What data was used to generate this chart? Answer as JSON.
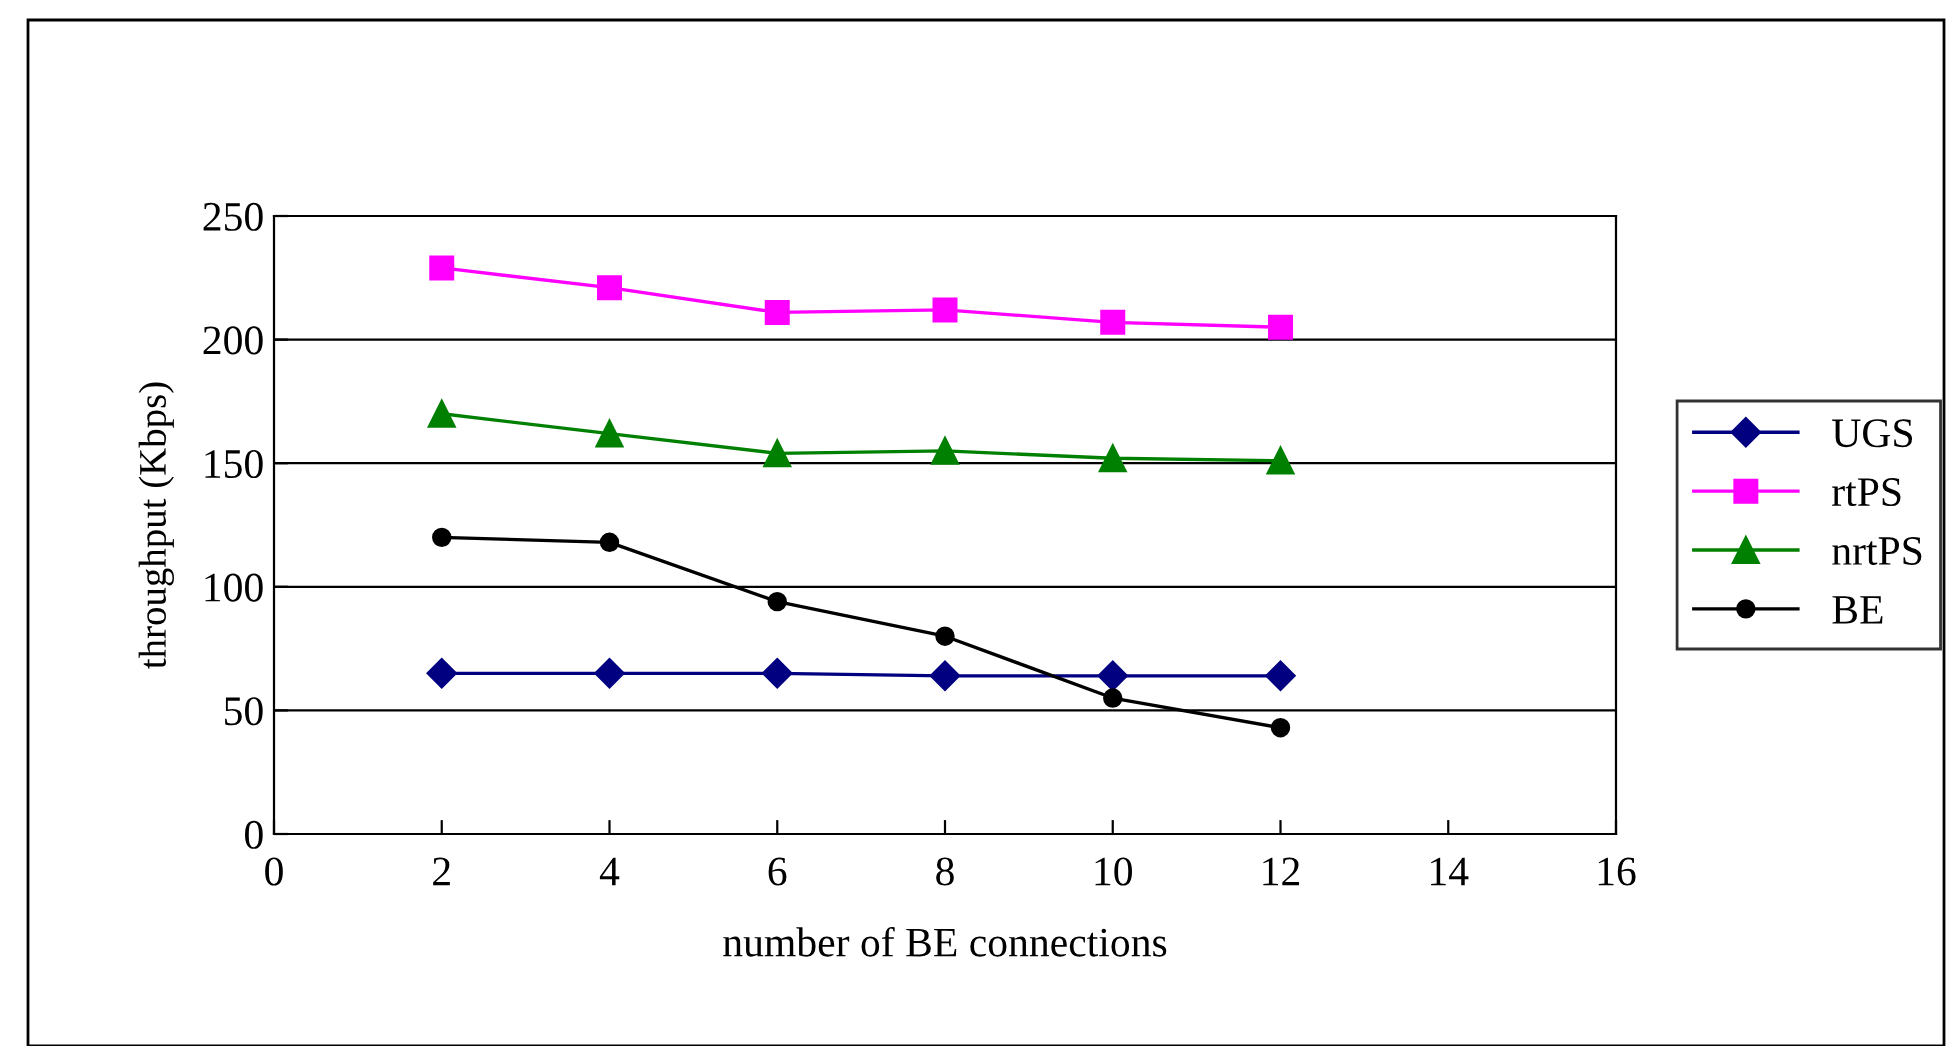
{
  "chart_data": {
    "type": "line",
    "xlabel": "number of BE connections",
    "ylabel": "throughput (Kbps)",
    "x": [
      2,
      4,
      6,
      8,
      10,
      12
    ],
    "series": [
      {
        "name": "UGS",
        "color": "#000080",
        "marker": "diamond",
        "values": [
          65,
          65,
          65,
          64,
          64,
          64
        ]
      },
      {
        "name": "rtPS",
        "color": "#ff00ff",
        "marker": "square",
        "values": [
          229,
          221,
          211,
          212,
          207,
          205
        ]
      },
      {
        "name": "nrtPS",
        "color": "#008000",
        "marker": "triangle",
        "values": [
          170,
          162,
          154,
          155,
          152,
          151
        ]
      },
      {
        "name": "BE",
        "color": "#000000",
        "marker": "circle",
        "values": [
          120,
          118,
          94,
          80,
          55,
          43
        ]
      }
    ],
    "xlim": [
      0,
      16
    ],
    "xticks": [
      0,
      2,
      4,
      6,
      8,
      10,
      12,
      14,
      16
    ],
    "ylim": [
      0,
      250
    ],
    "yticks": [
      0,
      50,
      100,
      150,
      200,
      250
    ],
    "grid": "y",
    "legend": "right",
    "line_style": "solid"
  }
}
